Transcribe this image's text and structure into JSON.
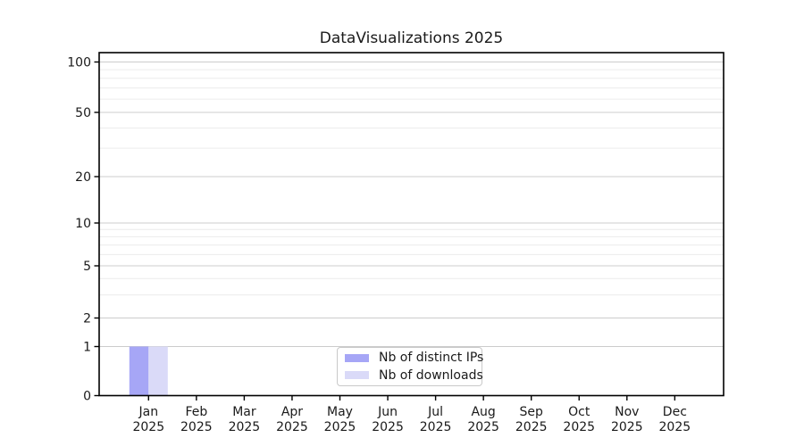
{
  "window": {
    "background": "#ffffff"
  },
  "chart_data": {
    "type": "bar",
    "title": "DataVisualizations 2025",
    "categories": [
      "Jan 2025",
      "Feb 2025",
      "Mar 2025",
      "Apr 2025",
      "May 2025",
      "Jun 2025",
      "Jul 2025",
      "Aug 2025",
      "Sep 2025",
      "Oct 2025",
      "Nov 2025",
      "Dec 2025"
    ],
    "series": [
      {
        "name": "Nb of distinct IPs",
        "color": "#a6a6f6",
        "values": [
          1,
          0,
          0,
          0,
          0,
          0,
          0,
          0,
          0,
          0,
          0,
          0
        ]
      },
      {
        "name": "Nb of downloads",
        "color": "#dadaf8",
        "values": [
          1,
          0,
          0,
          0,
          0,
          0,
          0,
          0,
          0,
          0,
          0,
          0
        ]
      }
    ],
    "xlabel": "",
    "ylabel": "",
    "yticks": [
      0,
      1,
      2,
      5,
      10,
      20,
      50,
      100
    ],
    "minor_yticks": [
      3,
      4,
      6,
      7,
      8,
      9,
      30,
      40,
      60,
      70,
      80,
      90
    ],
    "ylim": [
      0,
      115
    ],
    "yscale": "log-like with 0 baseline",
    "grid": true,
    "legend_position": "lower center",
    "colors": {
      "major_grid": "#cccccc",
      "minor_grid": "#ececec",
      "spine": "#000000",
      "tick_text": "#1a1a1a"
    }
  }
}
